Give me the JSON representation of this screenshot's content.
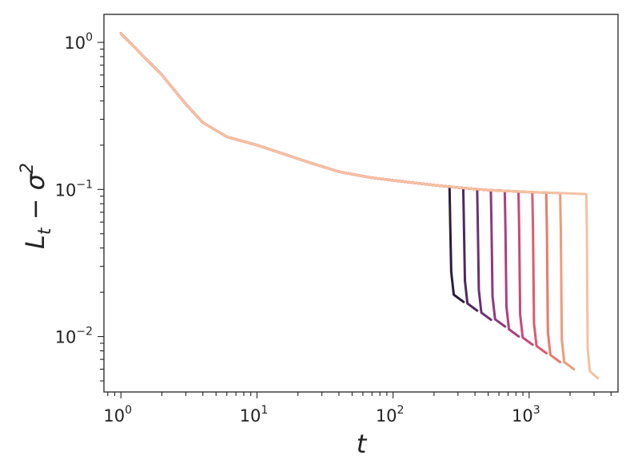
{
  "chart_data": {
    "type": "line",
    "xscale": "log",
    "yscale": "log",
    "xlim": [
      0.75,
      4500
    ],
    "ylim": [
      0.0042,
      1.55
    ],
    "grid": false,
    "legend": "none",
    "xlabel": "t",
    "ylabel": "L_t − σ^2",
    "x_ticks": [
      {
        "value": 1,
        "base": "10",
        "exp": "0"
      },
      {
        "value": 10,
        "base": "10",
        "exp": "1"
      },
      {
        "value": 100,
        "base": "10",
        "exp": "2"
      },
      {
        "value": 1000,
        "base": "10",
        "exp": "3"
      }
    ],
    "y_ticks": [
      {
        "value": 0.01,
        "base": "10",
        "exp": "−2"
      },
      {
        "value": 0.1,
        "base": "10",
        "exp": "−1"
      },
      {
        "value": 1,
        "base": "10",
        "exp": "0"
      }
    ],
    "shared_curve": {
      "x": [
        1,
        2,
        3,
        4,
        6,
        10,
        15,
        25,
        40,
        70,
        120,
        200,
        300,
        500,
        1000,
        2000,
        2600
      ],
      "y": [
        1.15,
        0.6,
        0.38,
        0.285,
        0.228,
        0.2,
        0.177,
        0.151,
        0.132,
        0.12,
        0.113,
        0.107,
        0.103,
        0.099,
        0.096,
        0.094,
        0.093
      ]
    },
    "series": [
      {
        "color": "#2c1e3d",
        "drop_t": 260,
        "end_t": 330,
        "final_y": 0.0172
      },
      {
        "color": "#4e2a5c",
        "drop_t": 328,
        "end_t": 415,
        "final_y": 0.015
      },
      {
        "color": "#6d3173",
        "drop_t": 415,
        "end_t": 525,
        "final_y": 0.013
      },
      {
        "color": "#8e3a7a",
        "drop_t": 523,
        "end_t": 665,
        "final_y": 0.0117
      },
      {
        "color": "#ae3e7e",
        "drop_t": 662,
        "end_t": 840,
        "final_y": 0.01
      },
      {
        "color": "#cb4878",
        "drop_t": 835,
        "end_t": 1060,
        "final_y": 0.0088
      },
      {
        "color": "#e05a6d",
        "drop_t": 1055,
        "end_t": 1340,
        "final_y": 0.0077
      },
      {
        "color": "#ea7a69",
        "drop_t": 1335,
        "end_t": 1690,
        "final_y": 0.0067
      },
      {
        "color": "#f09a7a",
        "drop_t": 1690,
        "end_t": 2130,
        "final_y": 0.006
      },
      {
        "color": "#f6c0a2",
        "drop_t": 2630,
        "end_t": 3200,
        "final_y": 0.0052
      }
    ]
  }
}
